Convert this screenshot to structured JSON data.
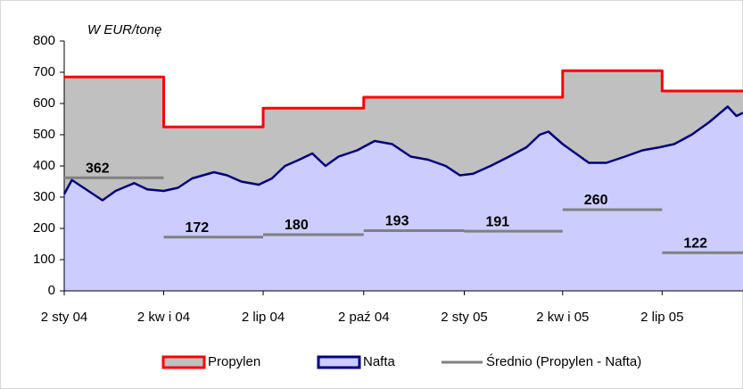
{
  "chart_data": {
    "type": "line",
    "annotation": "W EUR/tonę",
    "xlim": [
      "2004-01-02",
      "2005-09-14"
    ],
    "xticks": [
      {
        "value": "2004-01-02",
        "label": "2 sty 04"
      },
      {
        "value": "2004-04-02",
        "label": "2 kw i 04"
      },
      {
        "value": "2004-07-02",
        "label": "2 lip 04"
      },
      {
        "value": "2004-10-02",
        "label": "2 paź 04"
      },
      {
        "value": "2005-01-02",
        "label": "2 sty 05"
      },
      {
        "value": "2005-04-02",
        "label": "2 kw i 05"
      },
      {
        "value": "2005-07-02",
        "label": "2 lip 05"
      }
    ],
    "ylim": [
      0,
      800
    ],
    "yticks": [
      0,
      100,
      200,
      300,
      400,
      500,
      600,
      700,
      800
    ],
    "grid": false,
    "series": [
      {
        "name": "Propylen",
        "color": "#ff0000",
        "fill": "#c0c0c0",
        "step": true,
        "x": [
          "2004-01-02",
          "2004-04-02",
          "2004-07-02",
          "2004-10-02",
          "2005-04-02",
          "2005-07-02"
        ],
        "values": [
          685,
          525,
          585,
          620,
          705,
          640
        ]
      },
      {
        "name": "Nafta",
        "color": "#000080",
        "fill": "#ccccff",
        "x": [
          "2004-01-02",
          "2004-01-09",
          "2004-02-06",
          "2004-02-18",
          "2004-03-06",
          "2004-03-18",
          "2004-04-02",
          "2004-04-15",
          "2004-04-28",
          "2004-05-18",
          "2004-05-30",
          "2004-06-12",
          "2004-06-28",
          "2004-07-10",
          "2004-07-22",
          "2004-08-04",
          "2004-08-16",
          "2004-08-28",
          "2004-09-09",
          "2004-09-26",
          "2004-10-12",
          "2004-10-28",
          "2004-11-14",
          "2004-11-30",
          "2004-12-16",
          "2004-12-29",
          "2005-01-10",
          "2005-01-26",
          "2005-02-12",
          "2005-02-28",
          "2005-03-12",
          "2005-03-20",
          "2005-04-02",
          "2005-04-14",
          "2005-04-26",
          "2005-05-12",
          "2005-05-29",
          "2005-06-14",
          "2005-06-30",
          "2005-07-13",
          "2005-07-29",
          "2005-08-14",
          "2005-08-31",
          "2005-09-08",
          "2005-09-14"
        ],
        "values": [
          310,
          355,
          290,
          320,
          345,
          325,
          320,
          330,
          360,
          380,
          370,
          350,
          340,
          360,
          400,
          420,
          440,
          400,
          430,
          450,
          480,
          470,
          430,
          420,
          400,
          370,
          375,
          400,
          430,
          460,
          500,
          510,
          470,
          440,
          410,
          410,
          430,
          450,
          460,
          470,
          500,
          540,
          590,
          560,
          570
        ]
      },
      {
        "name": "Średnio (Propylen - Nafta)",
        "color": "#808080",
        "segments": true,
        "x": [
          "2004-01-02",
          "2004-04-02",
          "2004-07-02",
          "2004-10-02",
          "2005-01-02",
          "2005-04-02",
          "2005-07-02"
        ],
        "values": [
          362,
          172,
          180,
          193,
          191,
          260,
          122
        ]
      }
    ],
    "legend": "bottom"
  }
}
